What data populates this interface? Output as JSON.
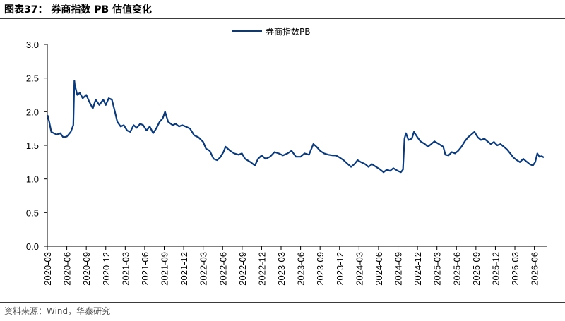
{
  "header": {
    "title": "图表37：  券商指数 PB 估值变化"
  },
  "footer": {
    "source": "资料来源：Wind，华泰研究"
  },
  "colors": {
    "series": "#0b3a7a",
    "axis": "#000000",
    "rule": "#3a3a3a"
  },
  "chart_data": {
    "type": "line",
    "title": "",
    "xlabel": "",
    "ylabel": "",
    "ylim": [
      0,
      3.0
    ],
    "yticks": [
      0.0,
      0.5,
      1.0,
      1.5,
      2.0,
      2.5,
      3.0
    ],
    "ytick_labels": [
      "0.0",
      "0.5",
      "1.0",
      "1.5",
      "2.0",
      "2.5",
      "3.0"
    ],
    "xlim": [
      "2020-03",
      "2026-08"
    ],
    "xtick_labels": [
      "2020-03",
      "2020-06",
      "2020-09",
      "2020-12",
      "2021-03",
      "2021-06",
      "2021-09",
      "2021-12",
      "2022-03",
      "2022-06",
      "2022-09",
      "2022-12",
      "2023-03",
      "2023-06",
      "2023-09",
      "2023-12",
      "2024-03",
      "2024-06",
      "2024-09",
      "2024-12",
      "2025-03",
      "2025-06",
      "2025-09",
      "2025-12",
      "2026-03",
      "2026-06"
    ],
    "grid": false,
    "legend": "top-center",
    "series": [
      {
        "name": "券商指数PB",
        "points": [
          [
            "2020-03-02",
            1.95
          ],
          [
            "2020-03-10",
            1.85
          ],
          [
            "2020-03-20",
            1.7
          ],
          [
            "2020-04-01",
            1.68
          ],
          [
            "2020-04-15",
            1.66
          ],
          [
            "2020-05-01",
            1.68
          ],
          [
            "2020-05-15",
            1.62
          ],
          [
            "2020-06-01",
            1.63
          ],
          [
            "2020-06-20",
            1.7
          ],
          [
            "2020-07-01",
            1.8
          ],
          [
            "2020-07-06",
            2.46
          ],
          [
            "2020-07-08",
            2.4
          ],
          [
            "2020-07-20",
            2.25
          ],
          [
            "2020-08-01",
            2.28
          ],
          [
            "2020-08-15",
            2.2
          ],
          [
            "2020-09-01",
            2.25
          ],
          [
            "2020-09-15",
            2.15
          ],
          [
            "2020-10-01",
            2.05
          ],
          [
            "2020-10-15",
            2.18
          ],
          [
            "2020-11-01",
            2.1
          ],
          [
            "2020-11-20",
            2.18
          ],
          [
            "2020-12-01",
            2.1
          ],
          [
            "2020-12-15",
            2.2
          ],
          [
            "2020-12-30",
            2.18
          ],
          [
            "2021-01-10",
            2.05
          ],
          [
            "2021-01-25",
            1.85
          ],
          [
            "2021-02-10",
            1.78
          ],
          [
            "2021-02-25",
            1.8
          ],
          [
            "2021-03-10",
            1.72
          ],
          [
            "2021-03-25",
            1.7
          ],
          [
            "2021-04-10",
            1.8
          ],
          [
            "2021-04-25",
            1.76
          ],
          [
            "2021-05-10",
            1.82
          ],
          [
            "2021-05-25",
            1.8
          ],
          [
            "2021-06-10",
            1.72
          ],
          [
            "2021-06-25",
            1.78
          ],
          [
            "2021-07-10",
            1.68
          ],
          [
            "2021-07-25",
            1.75
          ],
          [
            "2021-08-10",
            1.85
          ],
          [
            "2021-08-25",
            1.9
          ],
          [
            "2021-09-05",
            2.0
          ],
          [
            "2021-09-20",
            1.85
          ],
          [
            "2021-10-10",
            1.8
          ],
          [
            "2021-10-25",
            1.82
          ],
          [
            "2021-11-10",
            1.78
          ],
          [
            "2021-11-25",
            1.8
          ],
          [
            "2021-12-10",
            1.78
          ],
          [
            "2021-12-31",
            1.75
          ],
          [
            "2022-01-20",
            1.65
          ],
          [
            "2022-02-10",
            1.62
          ],
          [
            "2022-03-01",
            1.55
          ],
          [
            "2022-03-15",
            1.45
          ],
          [
            "2022-04-01",
            1.42
          ],
          [
            "2022-04-20",
            1.3
          ],
          [
            "2022-05-05",
            1.28
          ],
          [
            "2022-05-20",
            1.32
          ],
          [
            "2022-06-05",
            1.4
          ],
          [
            "2022-06-15",
            1.48
          ],
          [
            "2022-07-05",
            1.42
          ],
          [
            "2022-07-25",
            1.38
          ],
          [
            "2022-08-15",
            1.36
          ],
          [
            "2022-08-31",
            1.38
          ],
          [
            "2022-09-15",
            1.3
          ],
          [
            "2022-10-10",
            1.25
          ],
          [
            "2022-10-31",
            1.2
          ],
          [
            "2022-11-15",
            1.3
          ],
          [
            "2022-12-01",
            1.35
          ],
          [
            "2022-12-20",
            1.3
          ],
          [
            "2023-01-10",
            1.33
          ],
          [
            "2023-02-01",
            1.4
          ],
          [
            "2023-02-20",
            1.38
          ],
          [
            "2023-03-10",
            1.35
          ],
          [
            "2023-04-01",
            1.38
          ],
          [
            "2023-04-20",
            1.42
          ],
          [
            "2023-05-10",
            1.33
          ],
          [
            "2023-06-01",
            1.33
          ],
          [
            "2023-06-20",
            1.38
          ],
          [
            "2023-07-10",
            1.36
          ],
          [
            "2023-07-31",
            1.52
          ],
          [
            "2023-08-15",
            1.48
          ],
          [
            "2023-09-01",
            1.42
          ],
          [
            "2023-09-20",
            1.38
          ],
          [
            "2023-10-10",
            1.36
          ],
          [
            "2023-10-31",
            1.35
          ],
          [
            "2023-11-15",
            1.35
          ],
          [
            "2023-12-01",
            1.32
          ],
          [
            "2023-12-20",
            1.28
          ],
          [
            "2024-01-10",
            1.22
          ],
          [
            "2024-01-25",
            1.18
          ],
          [
            "2024-02-10",
            1.22
          ],
          [
            "2024-02-25",
            1.28
          ],
          [
            "2024-03-10",
            1.25
          ],
          [
            "2024-03-31",
            1.22
          ],
          [
            "2024-04-15",
            1.18
          ],
          [
            "2024-05-01",
            1.22
          ],
          [
            "2024-05-20",
            1.18
          ],
          [
            "2024-06-05",
            1.15
          ],
          [
            "2024-06-25",
            1.1
          ],
          [
            "2024-07-10",
            1.14
          ],
          [
            "2024-07-25",
            1.12
          ],
          [
            "2024-08-10",
            1.16
          ],
          [
            "2024-08-31",
            1.12
          ],
          [
            "2024-09-15",
            1.1
          ],
          [
            "2024-09-25",
            1.14
          ],
          [
            "2024-10-01",
            1.6
          ],
          [
            "2024-10-08",
            1.68
          ],
          [
            "2024-10-20",
            1.58
          ],
          [
            "2024-11-05",
            1.6
          ],
          [
            "2024-11-15",
            1.7
          ],
          [
            "2024-12-01",
            1.62
          ],
          [
            "2024-12-15",
            1.56
          ],
          [
            "2025-01-05",
            1.52
          ],
          [
            "2025-01-20",
            1.48
          ],
          [
            "2025-02-05",
            1.52
          ],
          [
            "2025-02-20",
            1.56
          ],
          [
            "2025-03-10",
            1.52
          ],
          [
            "2025-03-31",
            1.48
          ],
          [
            "2025-04-10",
            1.36
          ],
          [
            "2025-04-25",
            1.35
          ],
          [
            "2025-05-10",
            1.4
          ],
          [
            "2025-05-25",
            1.38
          ],
          [
            "2025-06-10",
            1.42
          ],
          [
            "2025-06-25",
            1.48
          ],
          [
            "2025-07-10",
            1.56
          ],
          [
            "2025-07-25",
            1.62
          ],
          [
            "2025-08-10",
            1.66
          ],
          [
            "2025-08-25",
            1.7
          ],
          [
            "2025-09-10",
            1.62
          ],
          [
            "2025-09-25",
            1.58
          ],
          [
            "2025-10-10",
            1.6
          ],
          [
            "2025-10-25",
            1.56
          ],
          [
            "2025-11-10",
            1.52
          ],
          [
            "2025-11-25",
            1.55
          ],
          [
            "2025-12-10",
            1.5
          ],
          [
            "2025-12-25",
            1.52
          ],
          [
            "2026-01-10",
            1.48
          ],
          [
            "2026-01-25",
            1.44
          ],
          [
            "2026-02-10",
            1.38
          ],
          [
            "2026-02-25",
            1.32
          ],
          [
            "2026-03-10",
            1.28
          ],
          [
            "2026-03-25",
            1.25
          ],
          [
            "2026-04-10",
            1.3
          ],
          [
            "2026-04-25",
            1.26
          ],
          [
            "2026-05-10",
            1.22
          ],
          [
            "2026-05-25",
            1.2
          ],
          [
            "2026-06-05",
            1.25
          ],
          [
            "2026-06-15",
            1.38
          ],
          [
            "2026-06-25",
            1.33
          ],
          [
            "2026-07-05",
            1.34
          ],
          [
            "2026-07-15",
            1.32
          ]
        ]
      }
    ]
  }
}
